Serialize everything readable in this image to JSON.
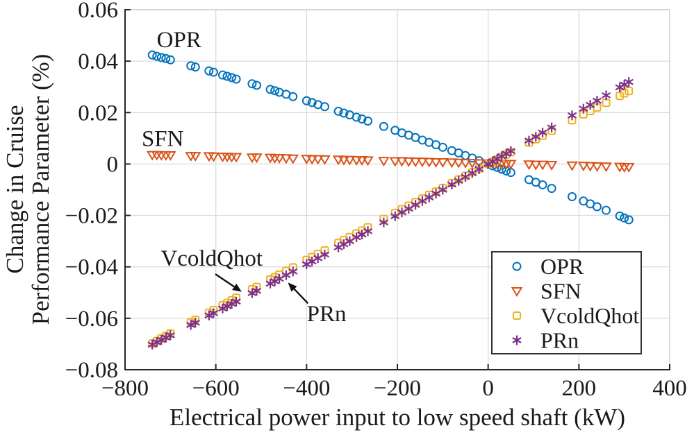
{
  "figure": {
    "background": "#ffffff",
    "axis_color": "#262626",
    "grid_color": "#dcdcdc",
    "box_color": "#cccccc",
    "text_color": "#1a1a1a"
  },
  "chart_data": {
    "type": "scatter",
    "title": "",
    "xlabel": "Electrical power input to low speed shaft (kW)",
    "ylabel_line1": "Change in Cruise",
    "ylabel_line2": "Performance Parameter (%)",
    "xlim": [
      -800,
      400
    ],
    "ylim": [
      -0.08,
      0.06
    ],
    "grid": true,
    "legend_position": "lower-right-inside",
    "xticks": [
      {
        "value": -800,
        "label": "−800"
      },
      {
        "value": -600,
        "label": "−600"
      },
      {
        "value": -400,
        "label": "−400"
      },
      {
        "value": -200,
        "label": "−200"
      },
      {
        "value": 0,
        "label": "0"
      },
      {
        "value": 200,
        "label": "200"
      },
      {
        "value": 400,
        "label": "400"
      }
    ],
    "yticks": [
      {
        "value": 0.06,
        "label": "0.06"
      },
      {
        "value": 0.04,
        "label": "0.04"
      },
      {
        "value": 0.02,
        "label": "0.02"
      },
      {
        "value": 0,
        "label": "0"
      },
      {
        "value": -0.02,
        "label": "−0.02"
      },
      {
        "value": -0.04,
        "label": "−0.04"
      },
      {
        "value": -0.06,
        "label": "−0.06"
      },
      {
        "value": -0.08,
        "label": "−0.08"
      }
    ],
    "x": [
      -740,
      -730,
      -720,
      -710,
      -700,
      -655,
      -645,
      -615,
      -605,
      -585,
      -575,
      -565,
      -555,
      -520,
      -510,
      -480,
      -470,
      -460,
      -445,
      -430,
      -400,
      -388,
      -375,
      -360,
      -330,
      -318,
      -305,
      -290,
      -278,
      -265,
      -230,
      -205,
      -190,
      -175,
      -160,
      -145,
      -130,
      -115,
      -100,
      -80,
      -65,
      -50,
      -35,
      -20,
      0,
      10,
      20,
      30,
      40,
      50,
      90,
      105,
      120,
      140,
      185,
      210,
      225,
      240,
      260,
      290,
      300,
      310
    ],
    "series": [
      {
        "name": "OPR",
        "marker": "circle",
        "color": "#0072BD",
        "values": [
          0.0424,
          0.0419,
          0.0414,
          0.041,
          0.0405,
          0.0382,
          0.0377,
          0.0362,
          0.0357,
          0.0346,
          0.0341,
          0.0336,
          0.033,
          0.0312,
          0.0306,
          0.029,
          0.0285,
          0.0279,
          0.0271,
          0.0262,
          0.0246,
          0.0239,
          0.0231,
          0.0223,
          0.0205,
          0.0198,
          0.0191,
          0.0182,
          0.0175,
          0.0167,
          0.0146,
          0.0131,
          0.0121,
          0.0112,
          0.0103,
          0.0093,
          0.0084,
          0.0075,
          0.0065,
          0.0052,
          0.0043,
          0.0033,
          0.0023,
          0.0013,
          0,
          -0.0007,
          -0.0013,
          -0.002,
          -0.0027,
          -0.0033,
          -0.0061,
          -0.0071,
          -0.0081,
          -0.0095,
          -0.0127,
          -0.0144,
          -0.0155,
          -0.0166,
          -0.018,
          -0.0202,
          -0.021,
          -0.0217
        ]
      },
      {
        "name": "SFN",
        "marker": "triangle-down",
        "color": "#D95319",
        "values": [
          0.0036,
          0.0036,
          0.0035,
          0.0035,
          0.0035,
          0.0032,
          0.0032,
          0.0031,
          0.003,
          0.0029,
          0.0029,
          0.0028,
          0.0028,
          0.0026,
          0.0026,
          0.0025,
          0.0024,
          0.0024,
          0.0023,
          0.0022,
          0.0021,
          0.002,
          0.002,
          0.0019,
          0.0018,
          0.0017,
          0.0017,
          0.0016,
          0.0016,
          0.0015,
          0.0013,
          0.0012,
          0.0012,
          0.0011,
          0.001,
          0.001,
          0.0009,
          0.0008,
          0.0008,
          0.0007,
          0.0006,
          0.0005,
          0.0005,
          0.0004,
          0.0003,
          0.0003,
          0.0002,
          0.0002,
          0.0001,
          0.0001,
          -0.0001,
          -0.0002,
          -0.0002,
          -0.0003,
          -0.0005,
          -0.0006,
          -0.0007,
          -0.0008,
          -0.0009,
          -0.001,
          -0.0011,
          -0.0011
        ]
      },
      {
        "name": "VcoldQhot",
        "marker": "square",
        "color": "#EDB120",
        "values": [
          -0.0698,
          -0.0688,
          -0.0678,
          -0.0669,
          -0.0659,
          -0.0616,
          -0.0606,
          -0.0578,
          -0.0568,
          -0.0549,
          -0.054,
          -0.053,
          -0.052,
          -0.0487,
          -0.0478,
          -0.0449,
          -0.044,
          -0.043,
          -0.0416,
          -0.0402,
          -0.0373,
          -0.0362,
          -0.035,
          -0.0336,
          -0.0307,
          -0.0296,
          -0.0284,
          -0.027,
          -0.0259,
          -0.0246,
          -0.0214,
          -0.019,
          -0.0176,
          -0.0162,
          -0.0148,
          -0.0134,
          -0.012,
          -0.0107,
          -0.0093,
          -0.0074,
          -0.006,
          -0.0046,
          -0.0032,
          -0.0018,
          0,
          0.0009,
          0.0018,
          0.0028,
          0.0037,
          0.0046,
          0.0083,
          0.0096,
          0.011,
          0.0129,
          0.017,
          0.0193,
          0.0206,
          0.022,
          0.0238,
          0.0265,
          0.0275,
          0.0284
        ]
      },
      {
        "name": "PRn",
        "marker": "asterisk",
        "color": "#7E2F8E",
        "values": [
          -0.0702,
          -0.0693,
          -0.0684,
          -0.0675,
          -0.0666,
          -0.0626,
          -0.0617,
          -0.0589,
          -0.058,
          -0.0562,
          -0.0553,
          -0.0544,
          -0.0535,
          -0.0502,
          -0.0493,
          -0.0465,
          -0.0456,
          -0.0446,
          -0.0432,
          -0.0418,
          -0.039,
          -0.0379,
          -0.0366,
          -0.0352,
          -0.0324,
          -0.0312,
          -0.03,
          -0.0285,
          -0.0274,
          -0.0261,
          -0.0227,
          -0.0203,
          -0.0188,
          -0.0174,
          -0.0159,
          -0.0144,
          -0.013,
          -0.0115,
          -0.01,
          -0.008,
          -0.0065,
          -0.005,
          -0.0035,
          -0.002,
          0,
          0.001,
          0.002,
          0.003,
          0.004,
          0.005,
          0.0091,
          0.0106,
          0.0122,
          0.0142,
          0.0189,
          0.0215,
          0.023,
          0.0246,
          0.0267,
          0.0298,
          0.0309,
          0.0319
        ]
      }
    ],
    "annotations": [
      {
        "text": "OPR",
        "x": -681,
        "y": 0.0484,
        "arrow": null
      },
      {
        "text": "SFN",
        "x": -717,
        "y": 0.01,
        "arrow": null
      },
      {
        "text": "VcoldQhot",
        "x": -609,
        "y": -0.0366,
        "arrow": {
          "x1": -601,
          "y1": -0.0428,
          "x2": -543,
          "y2": -0.0497
        }
      },
      {
        "text": "PRn",
        "x": -356,
        "y": -0.0582,
        "arrow": {
          "x1": -397,
          "y1": -0.0542,
          "x2": -441,
          "y2": -0.0461
        }
      }
    ]
  }
}
